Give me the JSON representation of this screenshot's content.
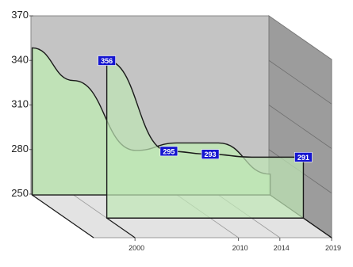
{
  "chart_data": {
    "type": "area",
    "title": "",
    "xlabel": "",
    "ylabel": "",
    "x": [
      1996,
      2000,
      2006,
      2010,
      2014,
      2019
    ],
    "x_ticks": [
      "2000",
      "2010",
      "2014",
      "2019"
    ],
    "y_ticks": [
      "250",
      "280",
      "310",
      "340",
      "370"
    ],
    "ylim": [
      250,
      370
    ],
    "grid": false,
    "legend": "none",
    "series": [
      {
        "values": [
          349,
          327,
          280,
          285,
          285,
          264
        ]
      },
      {
        "values": [
          null,
          356,
          295,
          293,
          291,
          291
        ]
      }
    ],
    "data_labels": [
      {
        "series": 1,
        "x": 2000,
        "y": 356,
        "text": "356"
      },
      {
        "series": 1,
        "x": 2006,
        "y": 295,
        "text": "295"
      },
      {
        "series": 1,
        "x": 2010,
        "y": 293,
        "text": "293"
      },
      {
        "series": 1,
        "x": 2019,
        "y": 291,
        "text": "291"
      }
    ],
    "colors": {
      "back_wall": "#c4c4c4",
      "side_wall": "#9c9c9c",
      "floor": "#e3e3e3",
      "area_fill": "#bfe7b5",
      "area_stroke": "#1a1a1a",
      "label_bg": "#1515d0",
      "label_text": "#ffffff"
    }
  }
}
